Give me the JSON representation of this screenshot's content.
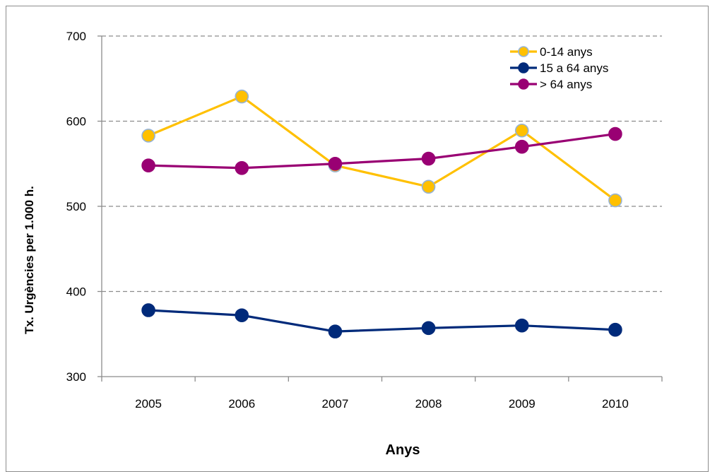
{
  "chart_data": {
    "type": "line",
    "x": [
      "2005",
      "2006",
      "2007",
      "2008",
      "2009",
      "2010"
    ],
    "xlabel": "Anys",
    "ylabel": "Tx. Urgències per 1.000 h.",
    "ylim": [
      300,
      700
    ],
    "yticks": [
      300,
      400,
      500,
      600,
      700
    ],
    "grid": "horizontal dashed",
    "legend_position": "top-right",
    "series": [
      {
        "name": "0-14 anys",
        "color": "#FFC000",
        "marker_edge": "#95B3D7",
        "values": [
          583,
          629,
          548,
          523,
          589,
          507
        ]
      },
      {
        "name": "15 a 64 anys",
        "color": "#002A7A",
        "marker_edge": "#002A7A",
        "values": [
          378,
          372,
          353,
          357,
          360,
          355
        ]
      },
      {
        "name": "> 64 anys",
        "color": "#990073",
        "marker_edge": "#990073",
        "values": [
          548,
          545,
          550,
          556,
          570,
          585
        ]
      }
    ]
  }
}
